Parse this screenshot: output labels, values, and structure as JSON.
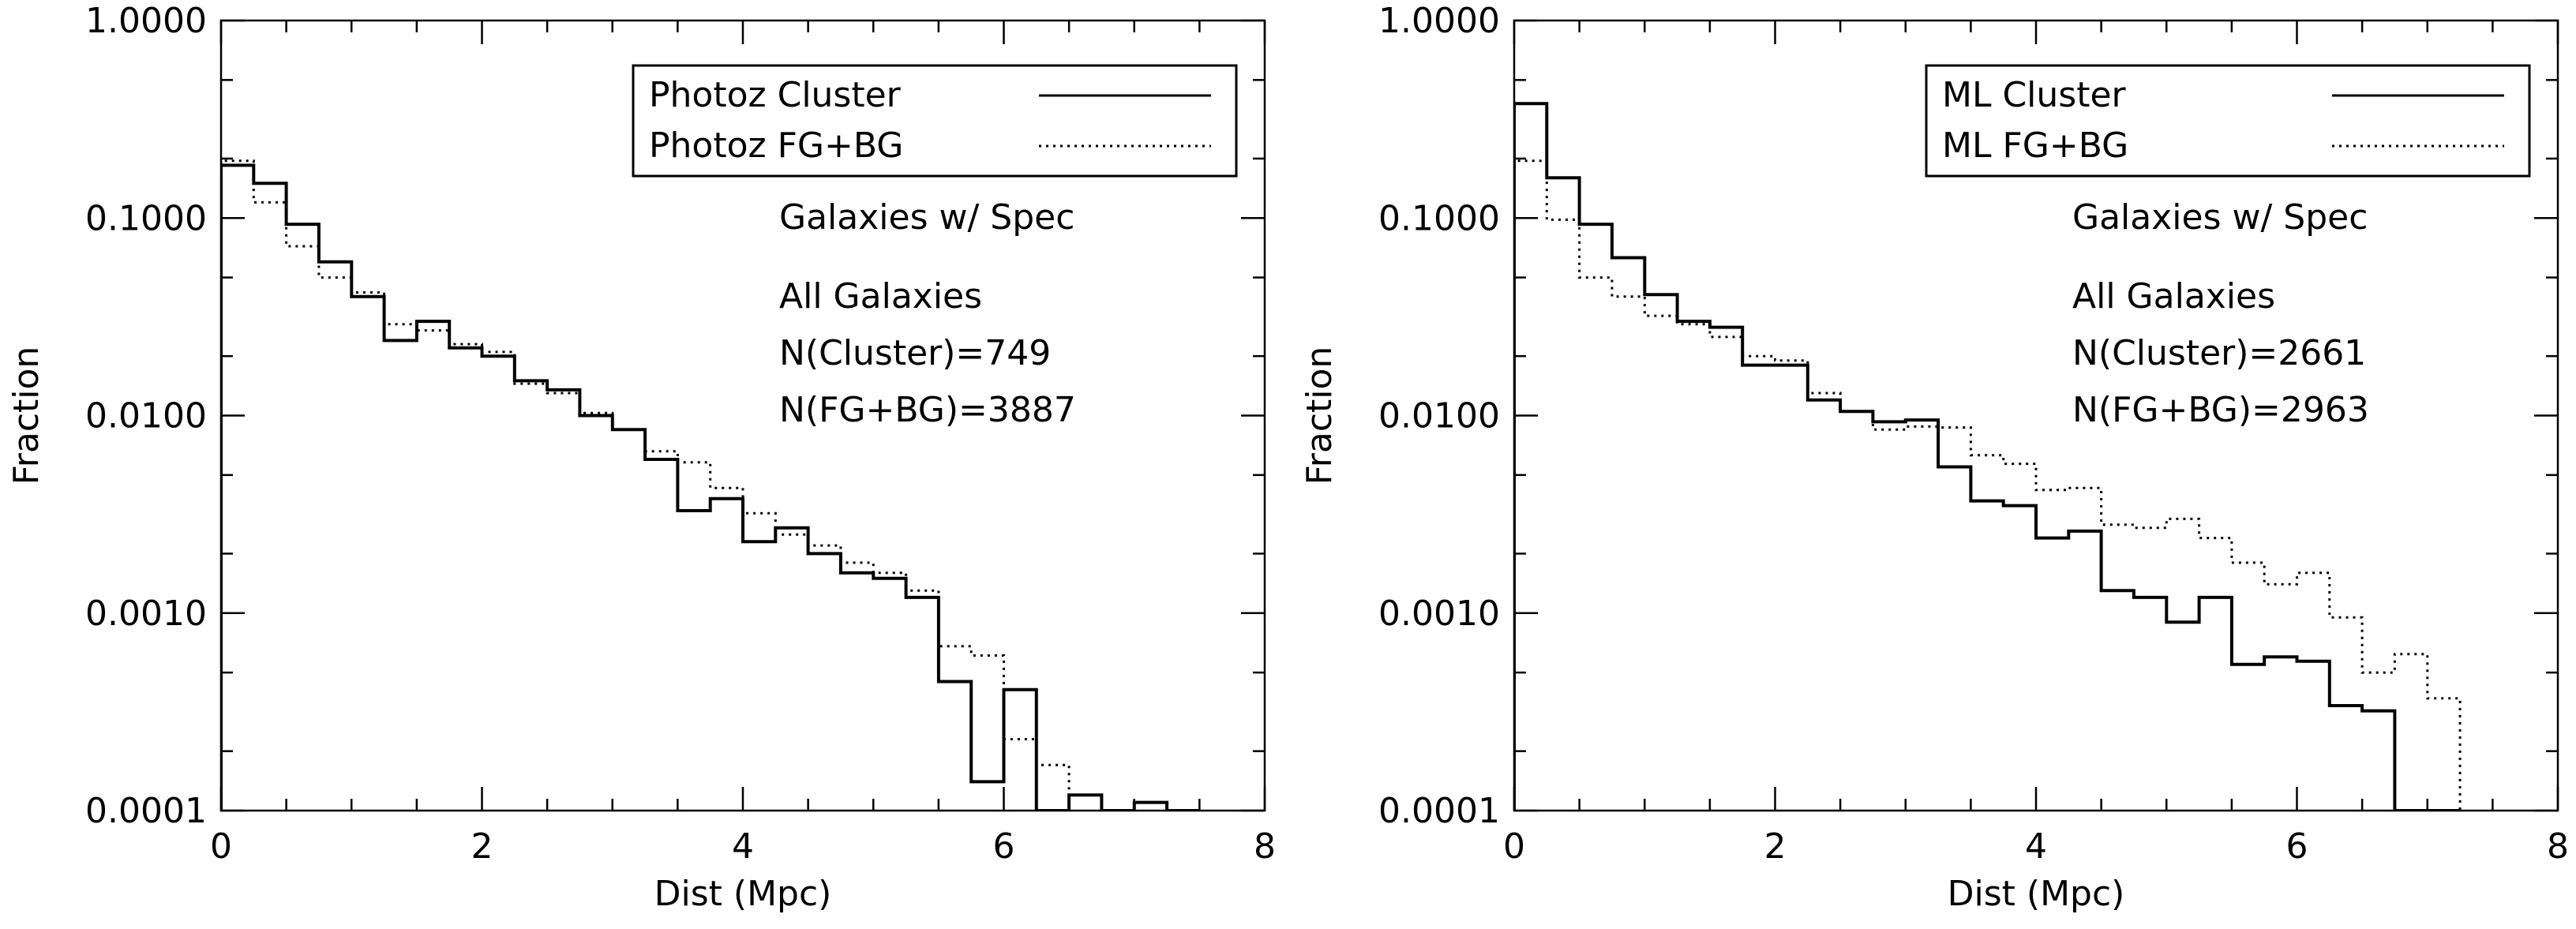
{
  "chart_data": [
    {
      "type": "step",
      "title": "",
      "xlabel": "Dist (Mpc)",
      "ylabel": "Fraction",
      "xlim": [
        0,
        8
      ],
      "ylim": [
        0.0001,
        1.0
      ],
      "yscale": "log",
      "grid": false,
      "xticks": [
        0,
        2,
        4,
        6,
        8
      ],
      "xtick_labels": [
        "0",
        "2",
        "4",
        "6",
        "8"
      ],
      "yticks": [
        0.0001,
        0.001,
        0.01,
        0.1,
        1.0
      ],
      "ytick_labels": [
        "0.0001",
        "0.0010",
        "0.0100",
        "0.1000",
        "1.0000"
      ],
      "legend_position": "top-right",
      "bin_width": 0.25,
      "series": [
        {
          "name": "Photoz Cluster",
          "style": "solid",
          "values": [
            0.185,
            0.15,
            0.093,
            0.06,
            0.04,
            0.024,
            0.03,
            0.022,
            0.02,
            0.015,
            0.0135,
            0.01,
            0.0085,
            0.006,
            0.0033,
            0.0038,
            0.0023,
            0.0027,
            0.002,
            0.0016,
            0.0015,
            0.0012,
            0.00045,
            0.00014,
            0.00041,
            0.0001,
            0.00012,
            0.0001,
            0.00011,
            0.0001
          ]
        },
        {
          "name": "Photoz FG+BG",
          "style": "dotted",
          "values": [
            0.195,
            0.12,
            0.072,
            0.05,
            0.042,
            0.029,
            0.027,
            0.023,
            0.021,
            0.0145,
            0.013,
            0.0103,
            0.0085,
            0.0066,
            0.0058,
            0.0043,
            0.0032,
            0.0025,
            0.0022,
            0.0018,
            0.0016,
            0.0013,
            0.00068,
            0.00061,
            0.00023,
            0.00017,
            0.00012,
            0.0001
          ]
        }
      ],
      "annotations": [
        "Galaxies w/ Spec",
        "All Galaxies",
        "N(Cluster)=749",
        "N(FG+BG)=3887"
      ]
    },
    {
      "type": "step",
      "title": "",
      "xlabel": "Dist (Mpc)",
      "ylabel": "Fraction",
      "xlim": [
        0,
        8
      ],
      "ylim": [
        0.0001,
        1.0
      ],
      "yscale": "log",
      "grid": false,
      "xticks": [
        0,
        2,
        4,
        6,
        8
      ],
      "xtick_labels": [
        "0",
        "2",
        "4",
        "6",
        "8"
      ],
      "yticks": [
        0.0001,
        0.001,
        0.01,
        0.1,
        1.0
      ],
      "ytick_labels": [
        "0.0001",
        "0.0010",
        "0.0100",
        "0.1000",
        "1.0000"
      ],
      "legend_position": "top-right",
      "bin_width": 0.25,
      "series": [
        {
          "name": "ML Cluster",
          "style": "solid",
          "values": [
            0.38,
            0.16,
            0.093,
            0.063,
            0.041,
            0.03,
            0.028,
            0.018,
            0.018,
            0.012,
            0.0105,
            0.0093,
            0.0095,
            0.0055,
            0.0037,
            0.0035,
            0.0024,
            0.0026,
            0.0013,
            0.0012,
            0.0009,
            0.0012,
            0.00055,
            0.0006,
            0.00057,
            0.00034,
            0.00032,
            0.0001,
            0.0001
          ]
        },
        {
          "name": "ML FG+BG",
          "style": "dotted",
          "values": [
            0.195,
            0.098,
            0.05,
            0.04,
            0.032,
            0.029,
            0.025,
            0.02,
            0.019,
            0.013,
            0.0105,
            0.0085,
            0.0088,
            0.0087,
            0.0063,
            0.0057,
            0.0042,
            0.0043,
            0.0028,
            0.0027,
            0.003,
            0.0024,
            0.0018,
            0.0014,
            0.0016,
            0.00095,
            0.0005,
            0.00062,
            0.00037
          ]
        }
      ],
      "annotations": [
        "Galaxies w/ Spec",
        "All Galaxies",
        "N(Cluster)=2661",
        "N(FG+BG)=2963"
      ]
    }
  ]
}
